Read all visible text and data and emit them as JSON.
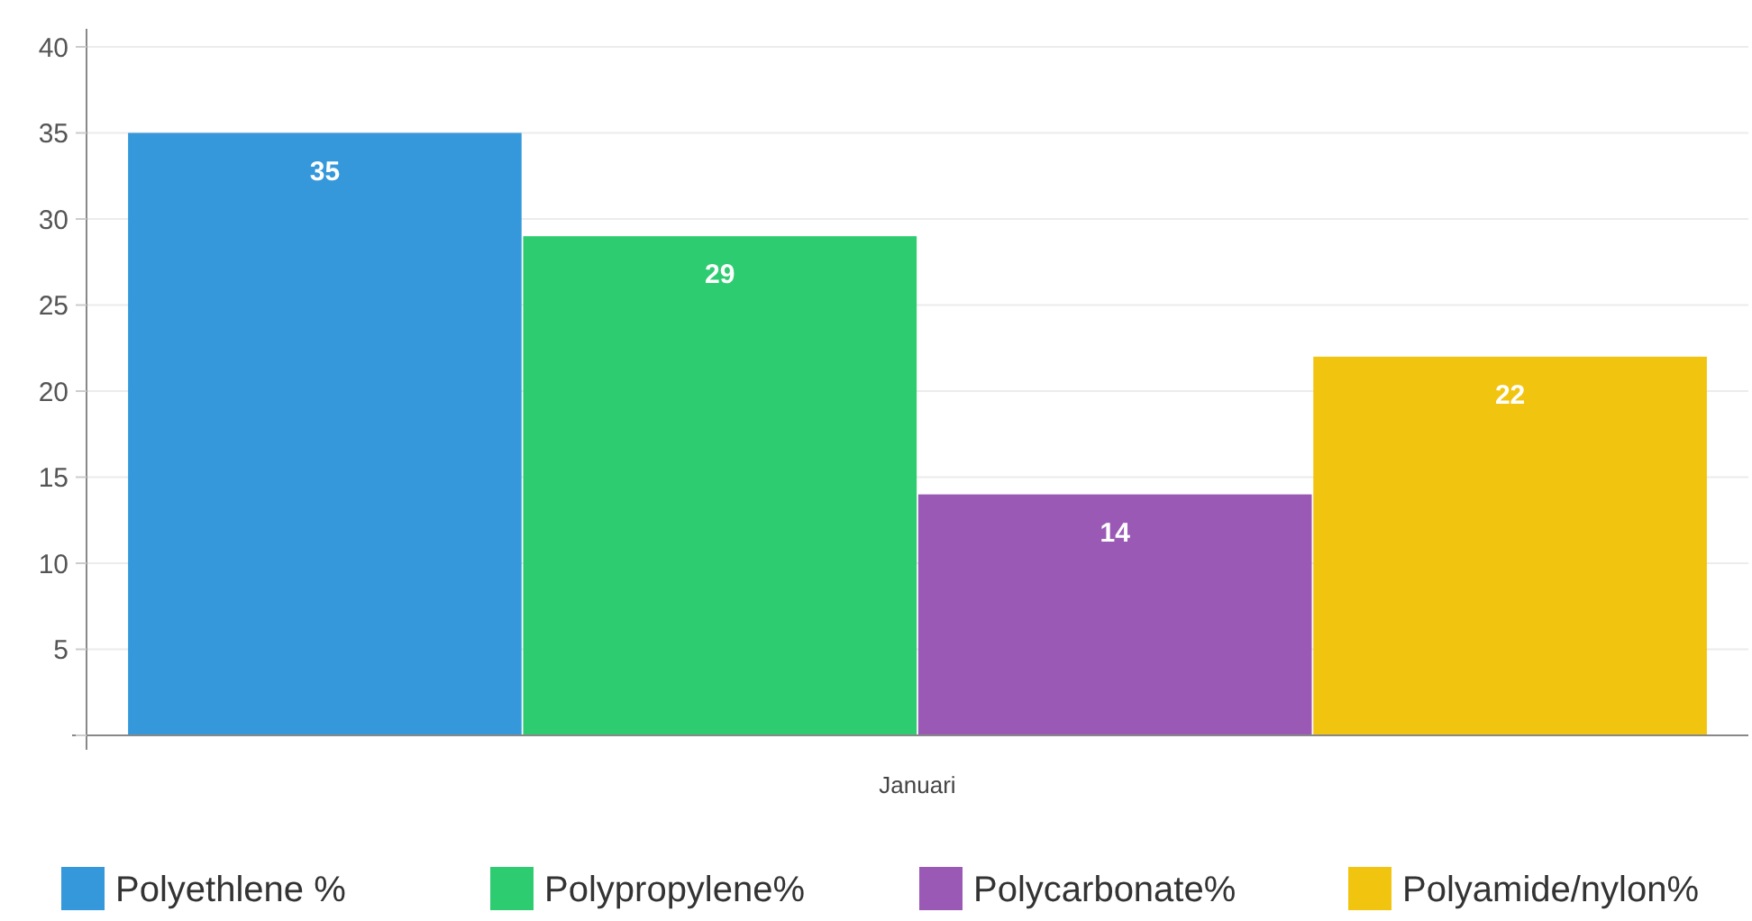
{
  "chart_data": {
    "type": "bar",
    "categories": [
      "Januari"
    ],
    "series": [
      {
        "name": "Polyethlene %",
        "color": "#3498db",
        "values": [
          35
        ]
      },
      {
        "name": "Polypropylene%",
        "color": "#2ecc71",
        "values": [
          29
        ]
      },
      {
        "name": "Polycarbonate%",
        "color": "#9b59b6",
        "values": [
          14
        ]
      },
      {
        "name": "Polyamide/nylon%",
        "color": "#f1c40f",
        "values": [
          22
        ]
      }
    ],
    "ylim": [
      0,
      40
    ],
    "yticks": [
      {
        "value": 0,
        "label": null
      },
      5,
      10,
      15,
      20,
      25,
      30,
      35,
      40
    ],
    "grid": "y",
    "legend": "bottom",
    "data_labels": true
  }
}
